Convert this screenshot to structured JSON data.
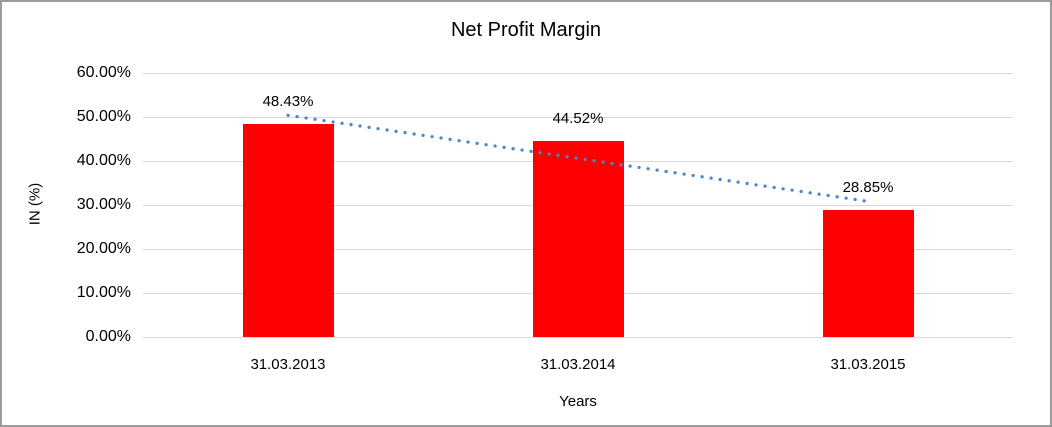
{
  "chart_data": {
    "type": "bar",
    "title": "Net Profit Margin",
    "xlabel": "Years",
    "ylabel": "IN (%)",
    "categories": [
      "31.03.2013",
      "31.03.2014",
      "31.03.2015"
    ],
    "values": [
      48.43,
      44.52,
      28.85
    ],
    "data_labels": [
      "48.43%",
      "44.52%",
      "28.85%"
    ],
    "ylim": [
      0,
      60
    ],
    "ytick_step": 10,
    "yticks": [
      "0.00%",
      "10.00%",
      "20.00%",
      "30.00%",
      "40.00%",
      "50.00%",
      "60.00%"
    ],
    "grid": true,
    "legend": false,
    "bar_color": "#ff0000",
    "gridline_color": "#d9d9d9",
    "text_color": "#000000",
    "trendline": {
      "type": "linear",
      "style": "dotted",
      "color": "#4a86c8"
    }
  }
}
